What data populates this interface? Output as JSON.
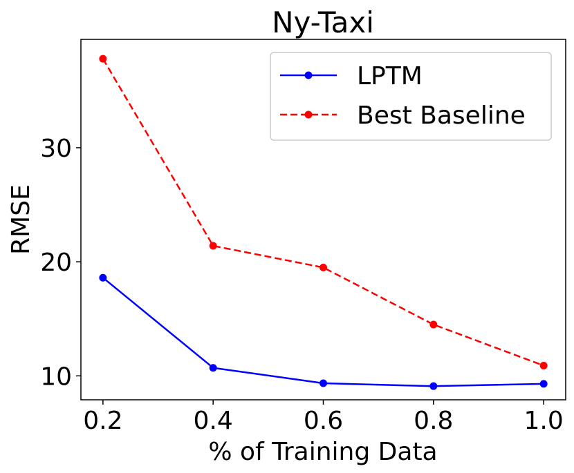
{
  "chart_data": {
    "type": "line",
    "title": "Ny-Taxi",
    "xlabel": "% of Training Data",
    "ylabel": "RMSE",
    "x": [
      0.2,
      0.4,
      0.6,
      0.8,
      1.0
    ],
    "x_tick_labels": [
      "0.2",
      "0.4",
      "0.6",
      "0.8",
      "1.0"
    ],
    "y_ticks": [
      10,
      20,
      30
    ],
    "y_tick_labels": [
      "10",
      "20",
      "30"
    ],
    "xlim": [
      0.16,
      1.04
    ],
    "ylim": [
      7.9,
      39.5
    ],
    "grid": false,
    "legend_position": "top-right",
    "series": [
      {
        "name": "LPTM",
        "values": [
          18.6,
          10.7,
          9.35,
          9.1,
          9.3
        ],
        "color": "#0000ff",
        "line_style": "solid",
        "marker": "circle"
      },
      {
        "name": "Best Baseline",
        "values": [
          37.8,
          21.4,
          19.5,
          14.5,
          10.9
        ],
        "color": "#ff0000",
        "line_style": "dashed",
        "marker": "circle"
      }
    ]
  }
}
